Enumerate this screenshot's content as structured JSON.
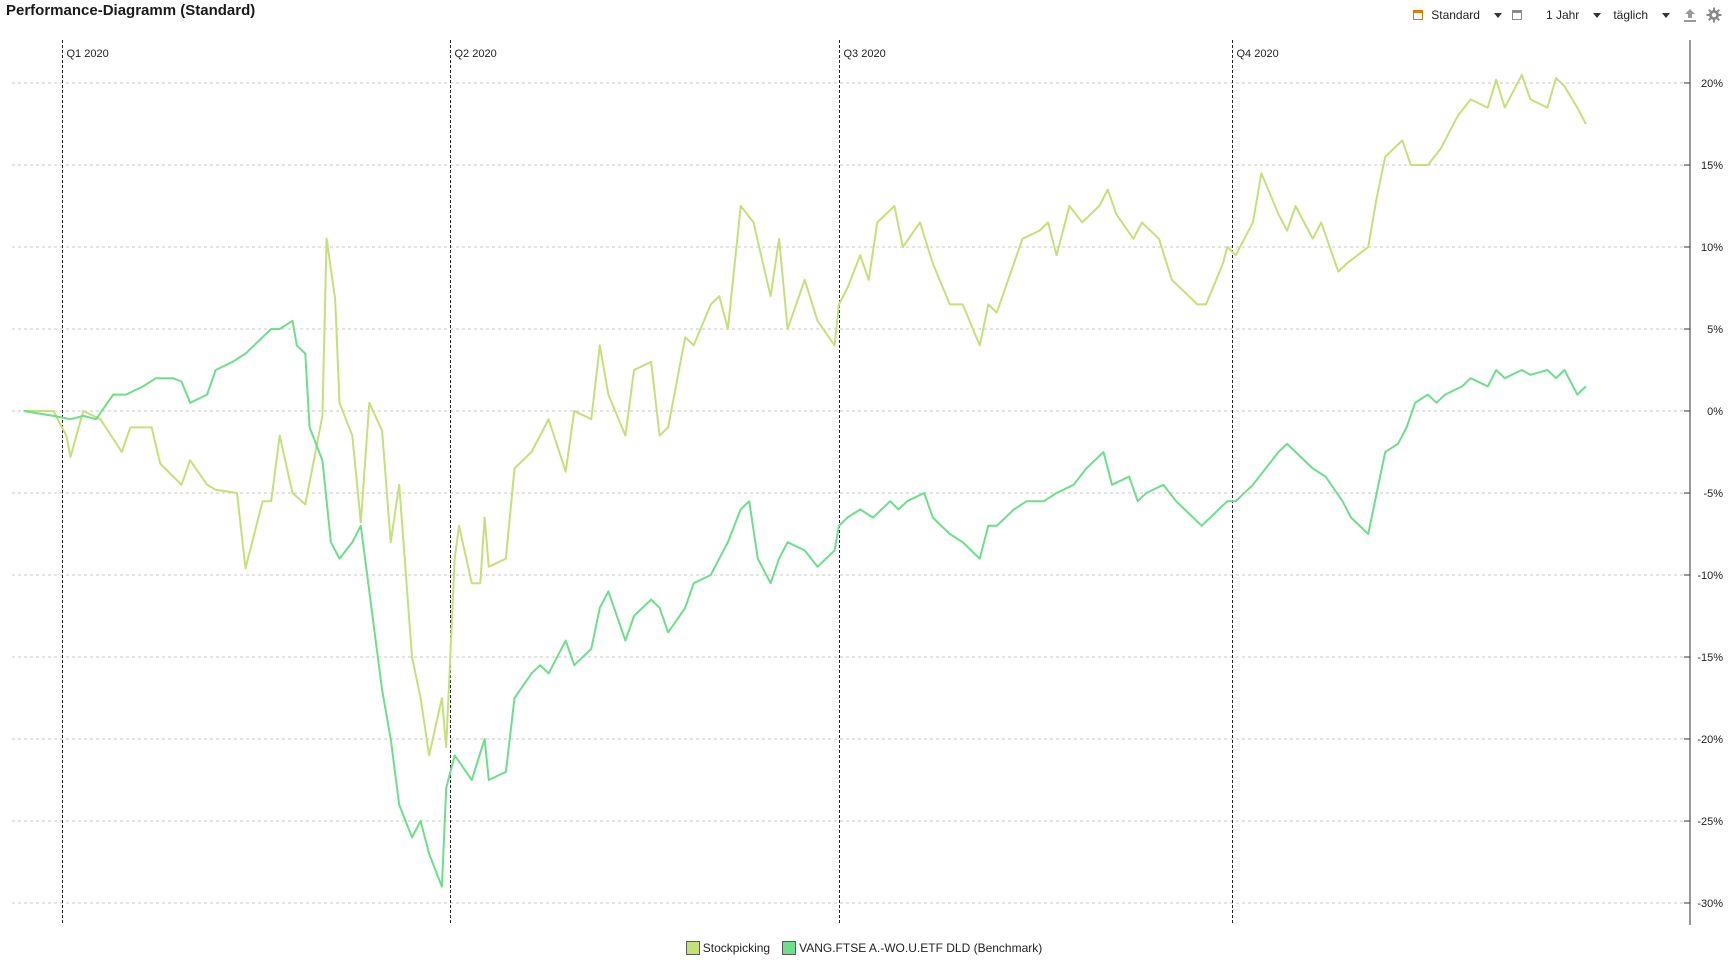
{
  "header": {
    "title": "Performance-Diagramm (Standard)"
  },
  "toolbar": {
    "view_label": "Standard",
    "period_label": "1 Jahr",
    "interval_label": "täglich",
    "icons": [
      "standard-view-icon",
      "calendar-icon",
      "upload-icon",
      "gear-icon"
    ],
    "accent_color": "#e07b00"
  },
  "chart_data": {
    "type": "line",
    "title": "Performance-Diagramm (Standard)",
    "x_range": [
      "2020-01-01",
      "2020-12-31"
    ],
    "ylim": [
      -30,
      21
    ],
    "y_ticks": [
      20,
      15,
      10,
      5,
      0,
      -5,
      -10,
      -15,
      -20,
      -25,
      -30
    ],
    "y_tick_labels": [
      "20%",
      "15%",
      "10%",
      "5%",
      "0%",
      "-5%",
      "-10%",
      "-15%",
      "-20%",
      "-25%",
      "-30%"
    ],
    "grid": true,
    "legend_position": "bottom",
    "quarter_markers": [
      {
        "label": "Q1 2020",
        "date": "2020-01-01"
      },
      {
        "label": "Q2 2020",
        "date": "2020-04-01"
      },
      {
        "label": "Q3 2020",
        "date": "2020-07-01"
      },
      {
        "label": "Q4 2020",
        "date": "2020-10-01"
      }
    ],
    "series": [
      {
        "name": "Stockpicking",
        "color": "#c5e07a",
        "points": [
          [
            "2019-12-23",
            0.0
          ],
          [
            "2019-12-30",
            0.0
          ],
          [
            "2020-01-02",
            -1.5
          ],
          [
            "2020-01-03",
            -2.8
          ],
          [
            "2020-01-06",
            0.0
          ],
          [
            "2020-01-10",
            -0.5
          ],
          [
            "2020-01-15",
            -2.5
          ],
          [
            "2020-01-17",
            -1.0
          ],
          [
            "2020-01-22",
            -1.0
          ],
          [
            "2020-01-24",
            -3.2
          ],
          [
            "2020-01-29",
            -4.5
          ],
          [
            "2020-01-31",
            -3.0
          ],
          [
            "2020-02-04",
            -4.5
          ],
          [
            "2020-02-06",
            -4.8
          ],
          [
            "2020-02-11",
            -5.0
          ],
          [
            "2020-02-13",
            -9.6
          ],
          [
            "2020-02-17",
            -5.5
          ],
          [
            "2020-02-19",
            -5.5
          ],
          [
            "2020-02-21",
            -1.5
          ],
          [
            "2020-02-24",
            -5.0
          ],
          [
            "2020-02-27",
            -5.7
          ],
          [
            "2020-03-02",
            -0.3
          ],
          [
            "2020-03-03",
            10.5
          ],
          [
            "2020-03-05",
            6.8
          ],
          [
            "2020-03-06",
            0.5
          ],
          [
            "2020-03-09",
            -1.5
          ],
          [
            "2020-03-11",
            -6.8
          ],
          [
            "2020-03-13",
            0.5
          ],
          [
            "2020-03-16",
            -1.2
          ],
          [
            "2020-03-18",
            -8.0
          ],
          [
            "2020-03-20",
            -4.5
          ],
          [
            "2020-03-23",
            -15.0
          ],
          [
            "2020-03-25",
            -17.5
          ],
          [
            "2020-03-27",
            -21.0
          ],
          [
            "2020-03-30",
            -17.5
          ],
          [
            "2020-03-31",
            -20.5
          ],
          [
            "2020-04-02",
            -9.0
          ],
          [
            "2020-04-03",
            -7.0
          ],
          [
            "2020-04-06",
            -10.5
          ],
          [
            "2020-04-08",
            -10.5
          ],
          [
            "2020-04-09",
            -6.5
          ],
          [
            "2020-04-10",
            -9.5
          ],
          [
            "2020-04-14",
            -9.0
          ],
          [
            "2020-04-16",
            -3.5
          ],
          [
            "2020-04-20",
            -2.5
          ],
          [
            "2020-04-22",
            -1.5
          ],
          [
            "2020-04-24",
            -0.5
          ],
          [
            "2020-04-28",
            -3.7
          ],
          [
            "2020-04-30",
            0.0
          ],
          [
            "2020-05-04",
            -0.5
          ],
          [
            "2020-05-06",
            4.0
          ],
          [
            "2020-05-08",
            1.0
          ],
          [
            "2020-05-12",
            -1.5
          ],
          [
            "2020-05-14",
            2.5
          ],
          [
            "2020-05-18",
            3.0
          ],
          [
            "2020-05-20",
            -1.5
          ],
          [
            "2020-05-22",
            -1.0
          ],
          [
            "2020-05-26",
            4.5
          ],
          [
            "2020-05-28",
            4.0
          ],
          [
            "2020-06-01",
            6.5
          ],
          [
            "2020-06-03",
            7.0
          ],
          [
            "2020-06-05",
            5.0
          ],
          [
            "2020-06-08",
            12.5
          ],
          [
            "2020-06-11",
            11.5
          ],
          [
            "2020-06-15",
            7.0
          ],
          [
            "2020-06-17",
            10.5
          ],
          [
            "2020-06-19",
            5.0
          ],
          [
            "2020-06-23",
            8.0
          ],
          [
            "2020-06-26",
            5.5
          ],
          [
            "2020-06-30",
            4.0
          ],
          [
            "2020-07-01",
            6.5
          ],
          [
            "2020-07-03",
            7.5
          ],
          [
            "2020-07-06",
            9.5
          ],
          [
            "2020-07-08",
            8.0
          ],
          [
            "2020-07-10",
            11.5
          ],
          [
            "2020-07-14",
            12.5
          ],
          [
            "2020-07-16",
            10.0
          ],
          [
            "2020-07-20",
            11.5
          ],
          [
            "2020-07-23",
            9.0
          ],
          [
            "2020-07-27",
            6.5
          ],
          [
            "2020-07-30",
            6.5
          ],
          [
            "2020-08-03",
            4.0
          ],
          [
            "2020-08-05",
            6.5
          ],
          [
            "2020-08-07",
            6.0
          ],
          [
            "2020-08-11",
            9.0
          ],
          [
            "2020-08-13",
            10.5
          ],
          [
            "2020-08-17",
            11.0
          ],
          [
            "2020-08-19",
            11.5
          ],
          [
            "2020-08-21",
            9.5
          ],
          [
            "2020-08-24",
            12.5
          ],
          [
            "2020-08-27",
            11.5
          ],
          [
            "2020-08-31",
            12.5
          ],
          [
            "2020-09-02",
            13.5
          ],
          [
            "2020-09-04",
            12.0
          ],
          [
            "2020-09-08",
            10.5
          ],
          [
            "2020-09-10",
            11.5
          ],
          [
            "2020-09-14",
            10.5
          ],
          [
            "2020-09-17",
            8.0
          ],
          [
            "2020-09-21",
            7.0
          ],
          [
            "2020-09-23",
            6.5
          ],
          [
            "2020-09-25",
            6.5
          ],
          [
            "2020-09-29",
            9.0
          ],
          [
            "2020-09-30",
            10.0
          ],
          [
            "2020-10-02",
            9.5
          ],
          [
            "2020-10-06",
            11.5
          ],
          [
            "2020-10-08",
            14.5
          ],
          [
            "2020-10-12",
            12.0
          ],
          [
            "2020-10-14",
            11.0
          ],
          [
            "2020-10-16",
            12.5
          ],
          [
            "2020-10-20",
            10.5
          ],
          [
            "2020-10-22",
            11.5
          ],
          [
            "2020-10-26",
            8.5
          ],
          [
            "2020-10-28",
            9.0
          ],
          [
            "2020-11-02",
            10.0
          ],
          [
            "2020-11-04",
            13.0
          ],
          [
            "2020-11-06",
            15.5
          ],
          [
            "2020-11-10",
            16.5
          ],
          [
            "2020-11-12",
            15.0
          ],
          [
            "2020-11-16",
            15.0
          ],
          [
            "2020-11-19",
            16.0
          ],
          [
            "2020-11-23",
            18.0
          ],
          [
            "2020-11-26",
            19.0
          ],
          [
            "2020-11-30",
            18.5
          ],
          [
            "2020-12-02",
            20.2
          ],
          [
            "2020-12-04",
            18.5
          ],
          [
            "2020-12-08",
            20.5
          ],
          [
            "2020-12-10",
            19.0
          ],
          [
            "2020-12-14",
            18.5
          ],
          [
            "2020-12-16",
            20.3
          ],
          [
            "2020-12-18",
            19.8
          ],
          [
            "2020-12-21",
            18.5
          ],
          [
            "2020-12-23",
            17.5
          ]
        ]
      },
      {
        "name": "VANG.FTSE A.-WO.U.ETF DLD (Benchmark)",
        "color": "#6ede8a",
        "points": [
          [
            "2019-12-23",
            0.0
          ],
          [
            "2019-12-30",
            -0.3
          ],
          [
            "2020-01-03",
            -0.5
          ],
          [
            "2020-01-06",
            -0.3
          ],
          [
            "2020-01-09",
            -0.5
          ],
          [
            "2020-01-13",
            1.0
          ],
          [
            "2020-01-16",
            1.0
          ],
          [
            "2020-01-20",
            1.5
          ],
          [
            "2020-01-23",
            2.0
          ],
          [
            "2020-01-27",
            2.0
          ],
          [
            "2020-01-29",
            1.8
          ],
          [
            "2020-01-31",
            0.5
          ],
          [
            "2020-02-04",
            1.0
          ],
          [
            "2020-02-06",
            2.5
          ],
          [
            "2020-02-10",
            3.0
          ],
          [
            "2020-02-13",
            3.5
          ],
          [
            "2020-02-17",
            4.5
          ],
          [
            "2020-02-19",
            5.0
          ],
          [
            "2020-02-21",
            5.0
          ],
          [
            "2020-02-24",
            5.5
          ],
          [
            "2020-02-25",
            4.0
          ],
          [
            "2020-02-27",
            3.5
          ],
          [
            "2020-02-28",
            -1.0
          ],
          [
            "2020-03-02",
            -3.0
          ],
          [
            "2020-03-04",
            -8.0
          ],
          [
            "2020-03-06",
            -9.0
          ],
          [
            "2020-03-09",
            -8.0
          ],
          [
            "2020-03-11",
            -7.0
          ],
          [
            "2020-03-13",
            -11.0
          ],
          [
            "2020-03-16",
            -17.0
          ],
          [
            "2020-03-18",
            -20.0
          ],
          [
            "2020-03-20",
            -24.0
          ],
          [
            "2020-03-23",
            -26.0
          ],
          [
            "2020-03-25",
            -25.0
          ],
          [
            "2020-03-27",
            -27.0
          ],
          [
            "2020-03-30",
            -29.0
          ],
          [
            "2020-03-31",
            -23.0
          ],
          [
            "2020-04-02",
            -21.0
          ],
          [
            "2020-04-06",
            -22.5
          ],
          [
            "2020-04-09",
            -20.0
          ],
          [
            "2020-04-10",
            -22.5
          ],
          [
            "2020-04-14",
            -22.0
          ],
          [
            "2020-04-16",
            -17.5
          ],
          [
            "2020-04-20",
            -16.0
          ],
          [
            "2020-04-22",
            -15.5
          ],
          [
            "2020-04-24",
            -16.0
          ],
          [
            "2020-04-28",
            -14.0
          ],
          [
            "2020-04-30",
            -15.5
          ],
          [
            "2020-05-04",
            -14.5
          ],
          [
            "2020-05-06",
            -12.0
          ],
          [
            "2020-05-08",
            -11.0
          ],
          [
            "2020-05-12",
            -14.0
          ],
          [
            "2020-05-14",
            -12.5
          ],
          [
            "2020-05-18",
            -11.5
          ],
          [
            "2020-05-20",
            -12.0
          ],
          [
            "2020-05-22",
            -13.5
          ],
          [
            "2020-05-26",
            -12.0
          ],
          [
            "2020-05-28",
            -10.5
          ],
          [
            "2020-06-01",
            -10.0
          ],
          [
            "2020-06-03",
            -9.0
          ],
          [
            "2020-06-05",
            -8.0
          ],
          [
            "2020-06-08",
            -6.0
          ],
          [
            "2020-06-10",
            -5.5
          ],
          [
            "2020-06-12",
            -9.0
          ],
          [
            "2020-06-15",
            -10.5
          ],
          [
            "2020-06-17",
            -9.0
          ],
          [
            "2020-06-19",
            -8.0
          ],
          [
            "2020-06-23",
            -8.5
          ],
          [
            "2020-06-26",
            -9.5
          ],
          [
            "2020-06-30",
            -8.5
          ],
          [
            "2020-07-01",
            -7.0
          ],
          [
            "2020-07-03",
            -6.5
          ],
          [
            "2020-07-06",
            -6.0
          ],
          [
            "2020-07-09",
            -6.5
          ],
          [
            "2020-07-13",
            -5.5
          ],
          [
            "2020-07-15",
            -6.0
          ],
          [
            "2020-07-17",
            -5.5
          ],
          [
            "2020-07-21",
            -5.0
          ],
          [
            "2020-07-23",
            -6.5
          ],
          [
            "2020-07-27",
            -7.5
          ],
          [
            "2020-07-30",
            -8.0
          ],
          [
            "2020-08-03",
            -9.0
          ],
          [
            "2020-08-05",
            -7.0
          ],
          [
            "2020-08-07",
            -7.0
          ],
          [
            "2020-08-11",
            -6.0
          ],
          [
            "2020-08-14",
            -5.5
          ],
          [
            "2020-08-18",
            -5.5
          ],
          [
            "2020-08-21",
            -5.0
          ],
          [
            "2020-08-25",
            -4.5
          ],
          [
            "2020-08-28",
            -3.5
          ],
          [
            "2020-09-01",
            -2.5
          ],
          [
            "2020-09-03",
            -4.5
          ],
          [
            "2020-09-07",
            -4.0
          ],
          [
            "2020-09-09",
            -5.5
          ],
          [
            "2020-09-11",
            -5.0
          ],
          [
            "2020-09-15",
            -4.5
          ],
          [
            "2020-09-18",
            -5.5
          ],
          [
            "2020-09-22",
            -6.5
          ],
          [
            "2020-09-24",
            -7.0
          ],
          [
            "2020-09-28",
            -6.0
          ],
          [
            "2020-09-30",
            -5.5
          ],
          [
            "2020-10-02",
            -5.5
          ],
          [
            "2020-10-06",
            -4.5
          ],
          [
            "2020-10-09",
            -3.5
          ],
          [
            "2020-10-12",
            -2.5
          ],
          [
            "2020-10-14",
            -2.0
          ],
          [
            "2020-10-16",
            -2.5
          ],
          [
            "2020-10-20",
            -3.5
          ],
          [
            "2020-10-23",
            -4.0
          ],
          [
            "2020-10-27",
            -5.5
          ],
          [
            "2020-10-29",
            -6.5
          ],
          [
            "2020-11-02",
            -7.5
          ],
          [
            "2020-11-04",
            -5.0
          ],
          [
            "2020-11-06",
            -2.5
          ],
          [
            "2020-11-09",
            -2.0
          ],
          [
            "2020-11-11",
            -1.0
          ],
          [
            "2020-11-13",
            0.5
          ],
          [
            "2020-11-16",
            1.0
          ],
          [
            "2020-11-18",
            0.5
          ],
          [
            "2020-11-20",
            1.0
          ],
          [
            "2020-11-24",
            1.5
          ],
          [
            "2020-11-26",
            2.0
          ],
          [
            "2020-11-30",
            1.5
          ],
          [
            "2020-12-02",
            2.5
          ],
          [
            "2020-12-04",
            2.0
          ],
          [
            "2020-12-08",
            2.5
          ],
          [
            "2020-12-10",
            2.2
          ],
          [
            "2020-12-14",
            2.5
          ],
          [
            "2020-12-16",
            2.0
          ],
          [
            "2020-12-18",
            2.5
          ],
          [
            "2020-12-21",
            1.0
          ],
          [
            "2020-12-23",
            1.5
          ]
        ]
      }
    ]
  }
}
